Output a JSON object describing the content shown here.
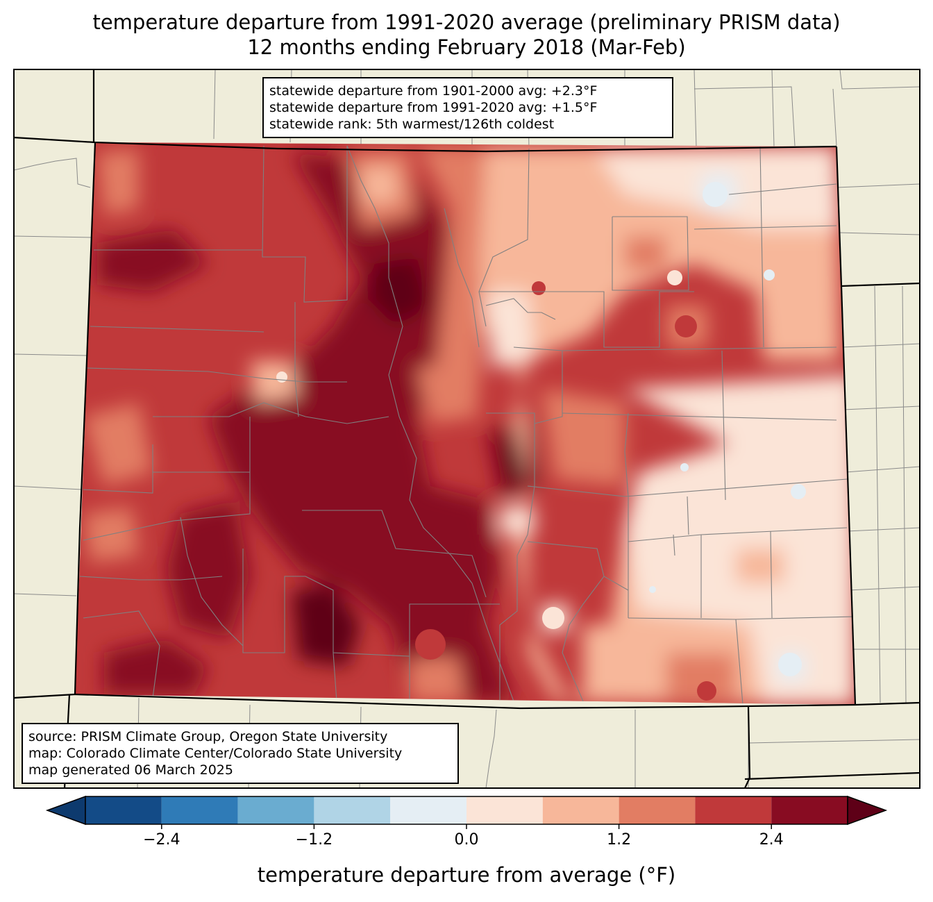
{
  "title": {
    "line1": "temperature departure from 1991-2020 average (preliminary PRISM data)",
    "line2": "12 months ending February 2018 (Mar-Feb)"
  },
  "stats_box": {
    "line1": "statewide departure from 1901-2000 avg: +2.3°F",
    "line2": "statewide departure from 1991-2020 avg: +1.5°F",
    "line3": "statewide rank: 5th warmest/126th coldest"
  },
  "source_box": {
    "line1": "source: PRISM Climate Group, Oregon State University",
    "line2": "map: Colorado Climate Center/Colorado State University",
    "line3": "map generated 06 March 2025"
  },
  "colorbar": {
    "title": "temperature departure from average (°F)",
    "levels": [
      -3.0,
      -2.4,
      -1.8,
      -1.2,
      -0.6,
      0.0,
      0.6,
      1.2,
      1.8,
      2.4,
      3.0
    ],
    "colors": [
      "#0d3a6e",
      "#134b87",
      "#2f7bb7",
      "#6aacd0",
      "#b0d4e6",
      "#e5eef4",
      "#fbe4d7",
      "#f7b79a",
      "#e27d63",
      "#c0393a",
      "#880c22",
      "#5e0017"
    ],
    "ticks": [
      {
        "value": -2.4,
        "label": "−2.4"
      },
      {
        "value": -1.2,
        "label": "−1.2"
      },
      {
        "value": 0.0,
        "label": "0.0"
      },
      {
        "value": 1.2,
        "label": "1.2"
      },
      {
        "value": 2.4,
        "label": "2.4"
      }
    ]
  },
  "map": {
    "region": "Colorado",
    "land_color": "#efedda",
    "county_line_color": "#7f7f7f",
    "state_line_color": "#000000"
  }
}
